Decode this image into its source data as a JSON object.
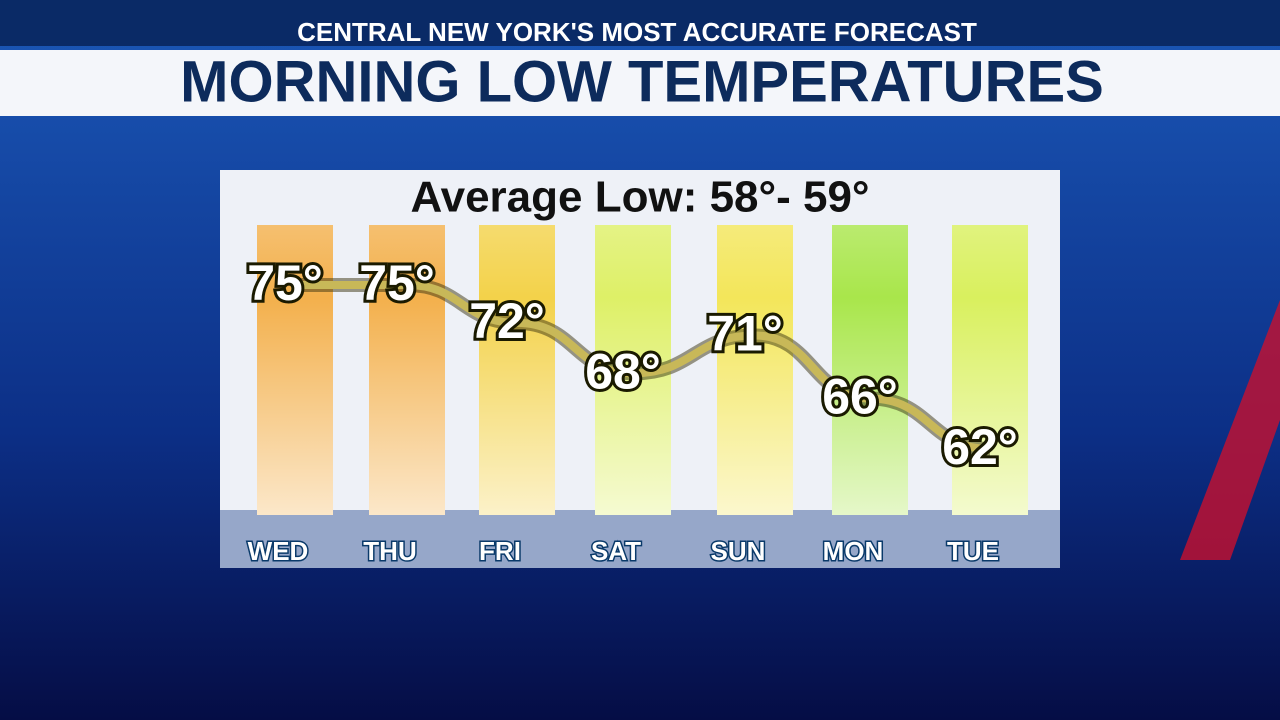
{
  "chart_data": {
    "type": "line",
    "subtitle": "CENTRAL NEW YORK'S MOST ACCURATE FORECAST",
    "title": "MORNING LOW TEMPERATURES",
    "annotation": "Average Low: 58°- 59°",
    "categories": [
      "WED",
      "THU",
      "FRI",
      "SAT",
      "SUN",
      "MON",
      "TUE"
    ],
    "values": [
      75,
      75,
      72,
      68,
      71,
      66,
      62
    ],
    "value_labels": [
      "75°",
      "75°",
      "72°",
      "68°",
      "71°",
      "66°",
      "62°"
    ],
    "colors": [
      "#f3b04c",
      "#f3b04c",
      "#f3d24a",
      "#def067",
      "#f3e65a",
      "#a9e64b",
      "#d9f05e"
    ],
    "line_color": "#c8b858"
  }
}
